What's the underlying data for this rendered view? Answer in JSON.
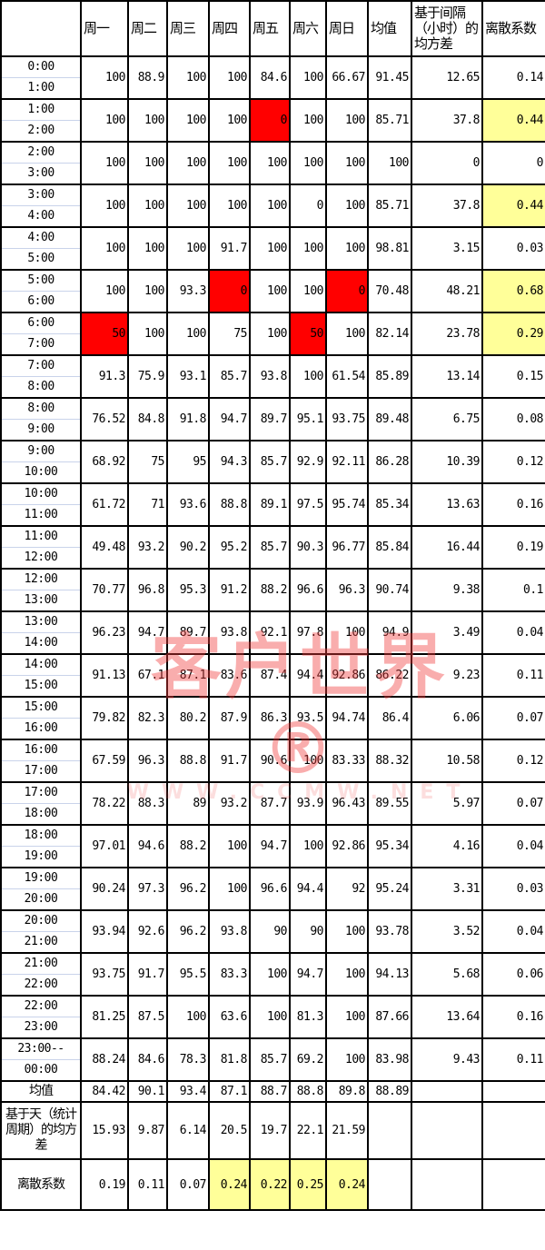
{
  "header": {
    "corner": "",
    "days": [
      "周一",
      "周二",
      "周三",
      "周四",
      "周五",
      "周六",
      "周日"
    ],
    "mean": "均值",
    "std": "基于间隔（小时）的均方差",
    "cv": "离散系数"
  },
  "colors": {
    "alert": "#ff0000",
    "highlight": "#ffff99"
  },
  "rows": [
    {
      "time": [
        "0:00",
        "1:00"
      ],
      "values": [
        "100",
        "88.9",
        "100",
        "100",
        "84.6",
        "100",
        "66.67"
      ],
      "mean": "91.45",
      "std": "12.65",
      "cv": "0.14",
      "red": [],
      "cv_highlight": false
    },
    {
      "time": [
        "1:00",
        "2:00"
      ],
      "values": [
        "100",
        "100",
        "100",
        "100",
        "0",
        "100",
        "100"
      ],
      "mean": "85.71",
      "std": "37.8",
      "cv": "0.44",
      "red": [
        4
      ],
      "cv_highlight": true
    },
    {
      "time": [
        "2:00",
        "3:00"
      ],
      "values": [
        "100",
        "100",
        "100",
        "100",
        "100",
        "100",
        "100"
      ],
      "mean": "100",
      "std": "0",
      "cv": "0",
      "red": [],
      "cv_highlight": false
    },
    {
      "time": [
        "3:00",
        "4:00"
      ],
      "values": [
        "100",
        "100",
        "100",
        "100",
        "100",
        "0",
        "100"
      ],
      "mean": "85.71",
      "std": "37.8",
      "cv": "0.44",
      "red": [],
      "cv_highlight": true
    },
    {
      "time": [
        "4:00",
        "5:00"
      ],
      "values": [
        "100",
        "100",
        "100",
        "91.7",
        "100",
        "100",
        "100"
      ],
      "mean": "98.81",
      "std": "3.15",
      "cv": "0.03",
      "red": [],
      "cv_highlight": false
    },
    {
      "time": [
        "5:00",
        "6:00"
      ],
      "values": [
        "100",
        "100",
        "93.3",
        "0",
        "100",
        "100",
        "0"
      ],
      "mean": "70.48",
      "std": "48.21",
      "cv": "0.68",
      "red": [
        3,
        6
      ],
      "cv_highlight": true
    },
    {
      "time": [
        "6:00",
        "7:00"
      ],
      "values": [
        "50",
        "100",
        "100",
        "75",
        "100",
        "50",
        "100"
      ],
      "mean": "82.14",
      "std": "23.78",
      "cv": "0.29",
      "red": [
        0,
        5
      ],
      "cv_highlight": true
    },
    {
      "time": [
        "7:00",
        "8:00"
      ],
      "values": [
        "91.3",
        "75.9",
        "93.1",
        "85.7",
        "93.8",
        "100",
        "61.54"
      ],
      "mean": "85.89",
      "std": "13.14",
      "cv": "0.15",
      "red": [],
      "cv_highlight": false
    },
    {
      "time": [
        "8:00",
        "9:00"
      ],
      "values": [
        "76.52",
        "84.8",
        "91.8",
        "94.7",
        "89.7",
        "95.1",
        "93.75"
      ],
      "mean": "89.48",
      "std": "6.75",
      "cv": "0.08",
      "red": [],
      "cv_highlight": false
    },
    {
      "time": [
        "9:00",
        "10:00"
      ],
      "values": [
        "68.92",
        "75",
        "95",
        "94.3",
        "85.7",
        "92.9",
        "92.11"
      ],
      "mean": "86.28",
      "std": "10.39",
      "cv": "0.12",
      "red": [],
      "cv_highlight": false
    },
    {
      "time": [
        "10:00",
        "11:00"
      ],
      "values": [
        "61.72",
        "71",
        "93.6",
        "88.8",
        "89.1",
        "97.5",
        "95.74"
      ],
      "mean": "85.34",
      "std": "13.63",
      "cv": "0.16",
      "red": [],
      "cv_highlight": false
    },
    {
      "time": [
        "11:00",
        "12:00"
      ],
      "values": [
        "49.48",
        "93.2",
        "90.2",
        "95.2",
        "85.7",
        "90.3",
        "96.77"
      ],
      "mean": "85.84",
      "std": "16.44",
      "cv": "0.19",
      "red": [],
      "cv_highlight": false
    },
    {
      "time": [
        "12:00",
        "13:00"
      ],
      "values": [
        "70.77",
        "96.8",
        "95.3",
        "91.2",
        "88.2",
        "96.6",
        "96.3"
      ],
      "mean": "90.74",
      "std": "9.38",
      "cv": "0.1",
      "red": [],
      "cv_highlight": false
    },
    {
      "time": [
        "13:00",
        "14:00"
      ],
      "values": [
        "96.23",
        "94.7",
        "89.7",
        "93.8",
        "92.1",
        "97.8",
        "100"
      ],
      "mean": "94.9",
      "std": "3.49",
      "cv": "0.04",
      "red": [],
      "cv_highlight": false
    },
    {
      "time": [
        "14:00",
        "15:00"
      ],
      "values": [
        "91.13",
        "67.1",
        "87.1",
        "83.6",
        "87.4",
        "94.4",
        "92.86"
      ],
      "mean": "86.22",
      "std": "9.23",
      "cv": "0.11",
      "red": [],
      "cv_highlight": false
    },
    {
      "time": [
        "15:00",
        "16:00"
      ],
      "values": [
        "79.82",
        "82.3",
        "80.2",
        "87.9",
        "86.3",
        "93.5",
        "94.74"
      ],
      "mean": "86.4",
      "std": "6.06",
      "cv": "0.07",
      "red": [],
      "cv_highlight": false
    },
    {
      "time": [
        "16:00",
        "17:00"
      ],
      "values": [
        "67.59",
        "96.3",
        "88.8",
        "91.7",
        "90.6",
        "100",
        "83.33"
      ],
      "mean": "88.32",
      "std": "10.58",
      "cv": "0.12",
      "red": [],
      "cv_highlight": false
    },
    {
      "time": [
        "17:00",
        "18:00"
      ],
      "values": [
        "78.22",
        "88.3",
        "89",
        "93.2",
        "87.7",
        "93.9",
        "96.43"
      ],
      "mean": "89.55",
      "std": "5.97",
      "cv": "0.07",
      "red": [],
      "cv_highlight": false
    },
    {
      "time": [
        "18:00",
        "19:00"
      ],
      "values": [
        "97.01",
        "94.6",
        "88.2",
        "100",
        "94.7",
        "100",
        "92.86"
      ],
      "mean": "95.34",
      "std": "4.16",
      "cv": "0.04",
      "red": [],
      "cv_highlight": false
    },
    {
      "time": [
        "19:00",
        "20:00"
      ],
      "values": [
        "90.24",
        "97.3",
        "96.2",
        "100",
        "96.6",
        "94.4",
        "92"
      ],
      "mean": "95.24",
      "std": "3.31",
      "cv": "0.03",
      "red": [],
      "cv_highlight": false
    },
    {
      "time": [
        "20:00",
        "21:00"
      ],
      "values": [
        "93.94",
        "92.6",
        "96.2",
        "93.8",
        "90",
        "90",
        "100"
      ],
      "mean": "93.78",
      "std": "3.52",
      "cv": "0.04",
      "red": [],
      "cv_highlight": false
    },
    {
      "time": [
        "21:00",
        "22:00"
      ],
      "values": [
        "93.75",
        "91.7",
        "95.5",
        "83.3",
        "100",
        "94.7",
        "100"
      ],
      "mean": "94.13",
      "std": "5.68",
      "cv": "0.06",
      "red": [],
      "cv_highlight": false
    },
    {
      "time": [
        "22:00",
        "23:00"
      ],
      "values": [
        "81.25",
        "87.5",
        "100",
        "63.6",
        "100",
        "81.3",
        "100"
      ],
      "mean": "87.66",
      "std": "13.64",
      "cv": "0.16",
      "red": [],
      "cv_highlight": false
    },
    {
      "time": [
        "23:00--",
        "00:00"
      ],
      "values": [
        "88.24",
        "84.6",
        "78.3",
        "81.8",
        "85.7",
        "69.2",
        "100"
      ],
      "mean": "83.98",
      "std": "9.43",
      "cv": "0.11",
      "red": [],
      "cv_highlight": false
    }
  ],
  "summary": {
    "mean": {
      "label": "均值",
      "values": [
        "84.42",
        "90.1",
        "93.4",
        "87.1",
        "88.7",
        "88.8",
        "89.8"
      ],
      "overall": "88.89"
    },
    "std": {
      "label": "基于天（统计周期）的均方差",
      "values": [
        "15.93",
        "9.87",
        "6.14",
        "20.5",
        "19.7",
        "22.1",
        "21.59"
      ]
    },
    "cv": {
      "label": "离散系数",
      "values": [
        "0.19",
        "0.11",
        "0.07",
        "0.24",
        "0.22",
        "0.25",
        "0.24"
      ],
      "highlight": [
        3,
        4,
        5,
        6
      ]
    }
  },
  "watermark": {
    "main": "客户世界®",
    "sub": "WWW.CCMW.NET"
  }
}
